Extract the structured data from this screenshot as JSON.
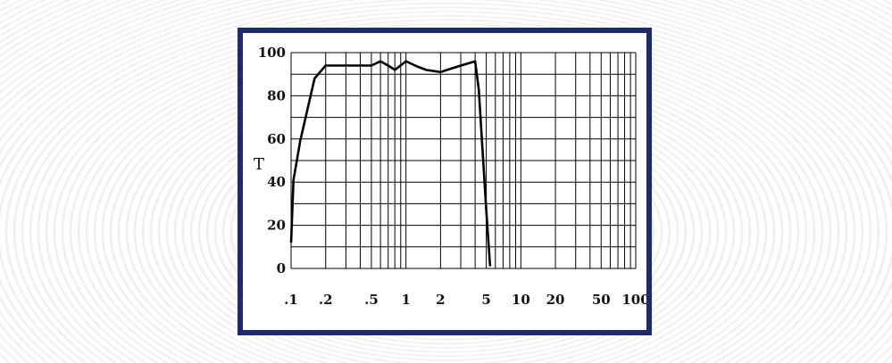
{
  "chart_data": {
    "type": "line",
    "title": "",
    "xlabel": "",
    "ylabel": "T",
    "x_scale": "log",
    "xlim": [
      0.1,
      100
    ],
    "ylim": [
      0,
      100
    ],
    "grid": true,
    "x_ticks": [
      0.1,
      0.2,
      0.5,
      1,
      2,
      5,
      10,
      20,
      50,
      100
    ],
    "x_tick_labels": [
      ".1",
      ".2",
      ".5",
      "1",
      "2",
      "5",
      "10",
      "20",
      "50",
      "100"
    ],
    "y_ticks": [
      0,
      20,
      40,
      60,
      80,
      100
    ],
    "y_tick_labels": [
      "0",
      "20",
      "40",
      "60",
      "80",
      "100"
    ],
    "series": [
      {
        "x": [
          0.1,
          0.105,
          0.12,
          0.16,
          0.2,
          0.3,
          0.5,
          0.6,
          0.7,
          0.8,
          1.0,
          1.2,
          1.5,
          2.0,
          3.0,
          4.0,
          4.3,
          5.0,
          5.4
        ],
        "y": [
          12,
          41,
          59,
          88,
          94,
          94,
          94,
          96,
          94,
          92,
          96,
          94,
          92,
          91,
          94,
          96,
          83,
          27,
          1
        ]
      }
    ]
  },
  "colors": {
    "frame": "#1d2b6b",
    "line": "#000000",
    "grid": "#000000"
  }
}
